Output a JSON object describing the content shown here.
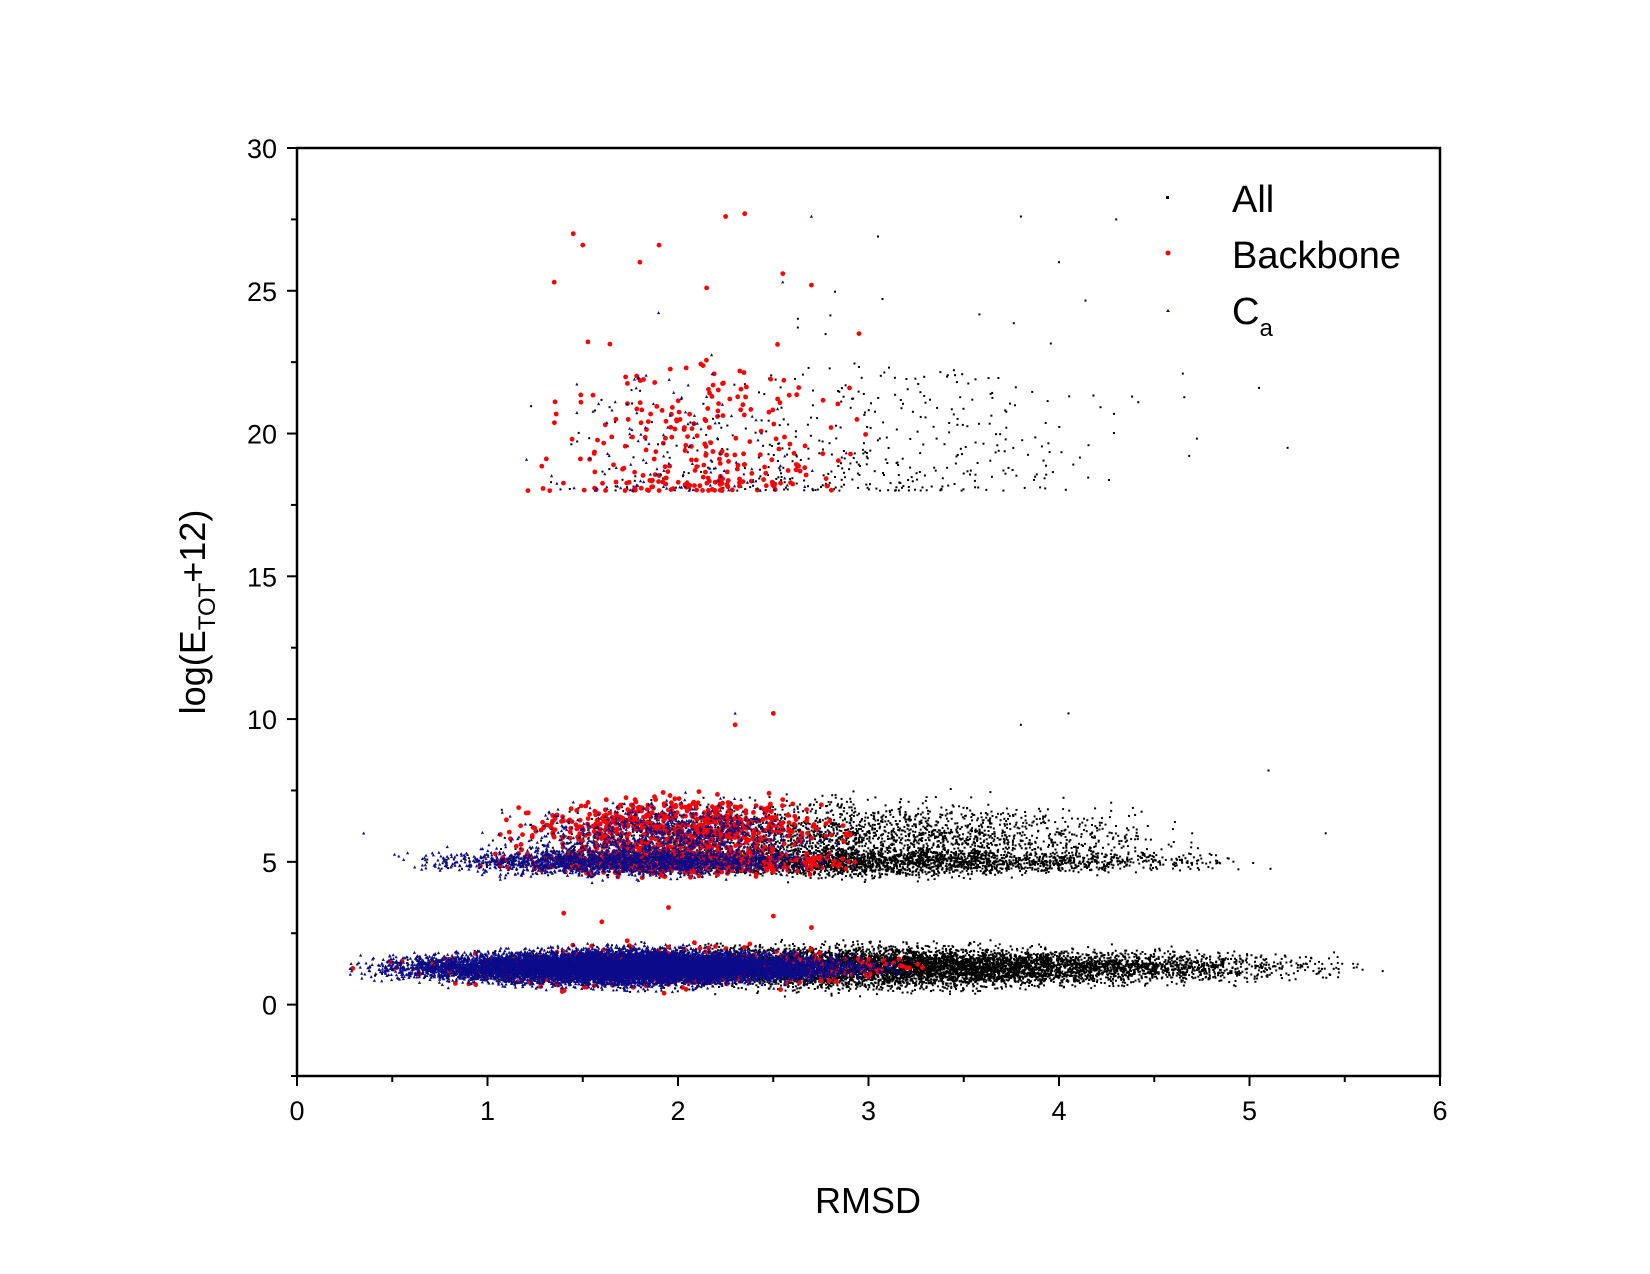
{
  "chart_data": {
    "type": "scatter",
    "title": "",
    "xlabel": "RMSD",
    "ylabel": {
      "prefix": "log(E",
      "subscript": "TOT",
      "suffix": "+12)"
    },
    "xlim": [
      0,
      6
    ],
    "ylim": [
      -2.5,
      30
    ],
    "xticks": [
      0,
      1,
      2,
      3,
      4,
      5,
      6
    ],
    "yticks": [
      0,
      5,
      10,
      15,
      20,
      25,
      30
    ],
    "xtick_labels": [
      "0",
      "1",
      "2",
      "3",
      "4",
      "5",
      "6"
    ],
    "ytick_labels": [
      "0",
      "5",
      "10",
      "15",
      "20",
      "25",
      "30"
    ],
    "grid": false,
    "legend_position": "top-right",
    "series": [
      {
        "name": "All",
        "color": "#000000",
        "marker": "small-square",
        "clusters": [
          {
            "x": [
              0.2,
              5.8
            ],
            "y_center": 1.3,
            "y_spread": 0.35,
            "count": 9000
          },
          {
            "x": [
              0.5,
              5.3
            ],
            "y_center": 5.0,
            "y_spread": 0.25,
            "count": 3000
          },
          {
            "x": [
              0.8,
              5.0
            ],
            "y_center": 5.9,
            "y_spread": 0.6,
            "count": 2200
          },
          {
            "x": [
              1.0,
              4.9
            ],
            "y_center": 19.5,
            "y_spread": 1.2,
            "count": 450
          }
        ],
        "points": [
          [
            2.3,
            9.8
          ],
          [
            3.8,
            9.8
          ],
          [
            4.05,
            10.2
          ],
          [
            3.8,
            27.6
          ],
          [
            4.3,
            27.5
          ],
          [
            3.05,
            26.9
          ],
          [
            4.0,
            26.0
          ],
          [
            5.05,
            21.6
          ],
          [
            5.2,
            19.5
          ],
          [
            4.65,
            22.1
          ],
          [
            5.1,
            8.2
          ],
          [
            5.4,
            6.0
          ]
        ]
      },
      {
        "name": "Backbone",
        "color": "#ff0000",
        "marker": "circle",
        "clusters": [
          {
            "x": [
              0.25,
              3.6
            ],
            "y_center": 1.3,
            "y_spread": 0.35,
            "count": 700
          },
          {
            "x": [
              0.8,
              3.2
            ],
            "y_center": 5.0,
            "y_spread": 0.25,
            "count": 600
          },
          {
            "x": [
              0.9,
              3.1
            ],
            "y_center": 6.2,
            "y_spread": 0.55,
            "count": 700
          },
          {
            "x": [
              1.0,
              3.2
            ],
            "y_center": 19.0,
            "y_spread": 1.0,
            "count": 260
          }
        ],
        "points": [
          [
            1.45,
            27.0
          ],
          [
            1.5,
            26.6
          ],
          [
            1.8,
            26.0
          ],
          [
            1.9,
            26.6
          ],
          [
            2.25,
            27.6
          ],
          [
            2.35,
            27.7
          ],
          [
            2.55,
            25.6
          ],
          [
            2.7,
            25.2
          ],
          [
            2.15,
            25.1
          ],
          [
            2.3,
            9.8
          ],
          [
            2.5,
            10.2
          ],
          [
            1.35,
            25.3
          ],
          [
            2.95,
            23.5
          ],
          [
            2.9,
            21.6
          ],
          [
            1.4,
            3.2
          ],
          [
            1.6,
            2.9
          ],
          [
            1.95,
            3.4
          ],
          [
            2.5,
            3.1
          ],
          [
            2.7,
            2.7
          ]
        ]
      },
      {
        "name": "C",
        "name_subscript": "a",
        "color": "#0b0b8a",
        "marker": "triangle",
        "clusters": [
          {
            "x": [
              0.15,
              3.3
            ],
            "y_center": 1.3,
            "y_spread": 0.3,
            "count": 11000
          },
          {
            "x": [
              0.4,
              3.0
            ],
            "y_center": 5.0,
            "y_spread": 0.25,
            "count": 1800
          },
          {
            "x": [
              0.9,
              3.0
            ],
            "y_center": 5.9,
            "y_spread": 0.6,
            "count": 900
          },
          {
            "x": [
              1.0,
              3.0
            ],
            "y_center": 19.0,
            "y_spread": 1.0,
            "count": 120
          }
        ],
        "points": [
          [
            0.35,
            6.0
          ],
          [
            2.7,
            27.6
          ],
          [
            2.55,
            25.3
          ],
          [
            2.3,
            10.2
          ]
        ]
      }
    ]
  }
}
